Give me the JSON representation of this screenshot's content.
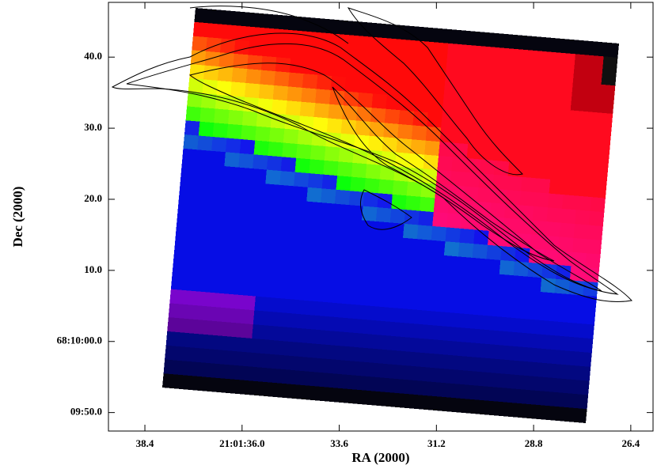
{
  "chart_data": {
    "type": "image",
    "xlabel": "RA (2000)",
    "ylabel": "Dec (2000)",
    "xlim": [
      39.3,
      25.85
    ],
    "ylim": [
      -12.6,
      47.7
    ],
    "xticks": [
      38.4,
      {
        "value": 36.0,
        "label": "21:01:36.0"
      },
      33.6,
      31.2,
      28.8,
      26.4
    ],
    "yticks": [
      {
        "value": 40,
        "label": "40.0"
      },
      {
        "value": 30,
        "label": "30.0"
      },
      {
        "value": 20,
        "label": "20.0"
      },
      {
        "value": 10,
        "label": "10.0"
      },
      {
        "value": 0,
        "label": "68:10:00.0"
      },
      {
        "value": -10,
        "label": "09:50.0"
      }
    ]
  }
}
